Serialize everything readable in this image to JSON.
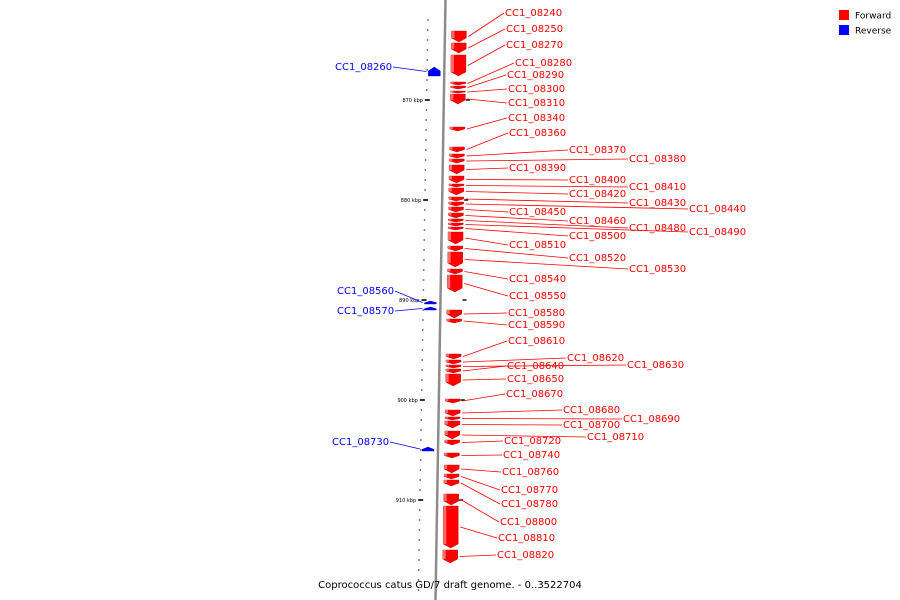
{
  "title": "Coprococcus catus GD/7 draft genome. - 0..3522704",
  "legend": [
    {
      "label": "Forward",
      "color": "#ff0000"
    },
    {
      "label": "Reverse",
      "color": "#0000ff"
    }
  ],
  "colors": {
    "forward": "#ff0000",
    "reverse": "#0000ff",
    "backbone": "#8c8c8c"
  },
  "ticks": [
    {
      "label": "870 kbp",
      "kbp": 870
    },
    {
      "label": "880 kbp",
      "kbp": 880
    },
    {
      "label": "890 kbp",
      "kbp": 890
    },
    {
      "label": "900 kbp",
      "kbp": 900
    },
    {
      "label": "910 kbp",
      "kbp": 910
    }
  ],
  "genes": [
    {
      "id": "CC1_08240",
      "strand": "+",
      "start": 863.1,
      "end": 864.2
    },
    {
      "id": "CC1_08250",
      "strand": "+",
      "start": 864.3,
      "end": 865.3
    },
    {
      "id": "CC1_08270",
      "strand": "+",
      "start": 865.5,
      "end": 867.6
    },
    {
      "id": "CC1_08280",
      "strand": "+",
      "start": 868.2,
      "end": 868.5
    },
    {
      "id": "CC1_08290",
      "strand": "+",
      "start": 868.6,
      "end": 868.9
    },
    {
      "id": "CC1_08300",
      "strand": "+",
      "start": 869.1,
      "end": 869.3
    },
    {
      "id": "CC1_08310",
      "strand": "+",
      "start": 869.4,
      "end": 870.4
    },
    {
      "id": "CC1_08340",
      "strand": "+",
      "start": 872.7,
      "end": 873.1
    },
    {
      "id": "CC1_08360",
      "strand": "+",
      "start": 874.7,
      "end": 875.2
    },
    {
      "id": "CC1_08370",
      "strand": "+",
      "start": 875.4,
      "end": 875.8
    },
    {
      "id": "CC1_08380",
      "strand": "+",
      "start": 875.9,
      "end": 876.3
    },
    {
      "id": "CC1_08390",
      "strand": "+",
      "start": 876.5,
      "end": 877.4
    },
    {
      "id": "CC1_08400",
      "strand": "+",
      "start": 877.6,
      "end": 878.3
    },
    {
      "id": "CC1_08410",
      "strand": "+",
      "start": 878.4,
      "end": 878.7
    },
    {
      "id": "CC1_08420",
      "strand": "+",
      "start": 878.8,
      "end": 879.5
    },
    {
      "id": "CC1_08430",
      "strand": "+",
      "start": 879.7,
      "end": 880.1
    },
    {
      "id": "CC1_08440",
      "strand": "+",
      "start": 880.2,
      "end": 880.6
    },
    {
      "id": "CC1_08450",
      "strand": "+",
      "start": 880.7,
      "end": 881.2
    },
    {
      "id": "CC1_08460",
      "strand": "+",
      "start": 881.3,
      "end": 881.8
    },
    {
      "id": "CC1_08480",
      "strand": "+",
      "start": 881.9,
      "end": 882.2
    },
    {
      "id": "CC1_08490",
      "strand": "+",
      "start": 882.3,
      "end": 882.6
    },
    {
      "id": "CC1_08500",
      "strand": "+",
      "start": 882.7,
      "end": 883.0
    },
    {
      "id": "CC1_08510",
      "strand": "+",
      "start": 883.2,
      "end": 884.4
    },
    {
      "id": "CC1_08520",
      "strand": "+",
      "start": 884.6,
      "end": 885.1
    },
    {
      "id": "CC1_08530",
      "strand": "+",
      "start": 885.2,
      "end": 886.7
    },
    {
      "id": "CC1_08540",
      "strand": "+",
      "start": 886.9,
      "end": 887.4
    },
    {
      "id": "CC1_08550",
      "strand": "+",
      "start": 887.5,
      "end": 889.2
    },
    {
      "id": "CC1_08580",
      "strand": "+",
      "start": 891.0,
      "end": 891.8
    },
    {
      "id": "CC1_08590",
      "strand": "+",
      "start": 891.9,
      "end": 892.3
    },
    {
      "id": "CC1_08610",
      "strand": "+",
      "start": 895.4,
      "end": 895.9
    },
    {
      "id": "CC1_08620",
      "strand": "+",
      "start": 896.0,
      "end": 896.4
    },
    {
      "id": "CC1_08630",
      "strand": "+",
      "start": 896.5,
      "end": 896.8
    },
    {
      "id": "CC1_08640",
      "strand": "+",
      "start": 896.9,
      "end": 897.3
    },
    {
      "id": "CC1_08650",
      "strand": "+",
      "start": 897.4,
      "end": 898.6
    },
    {
      "id": "CC1_08670",
      "strand": "+",
      "start": 899.9,
      "end": 900.3
    },
    {
      "id": "CC1_08680",
      "strand": "+",
      "start": 901.0,
      "end": 901.6
    },
    {
      "id": "CC1_08690",
      "strand": "+",
      "start": 901.7,
      "end": 902.0
    },
    {
      "id": "CC1_08700",
      "strand": "+",
      "start": 902.1,
      "end": 902.8
    },
    {
      "id": "CC1_08710",
      "strand": "+",
      "start": 903.1,
      "end": 903.9
    },
    {
      "id": "CC1_08720",
      "strand": "+",
      "start": 904.0,
      "end": 904.5
    },
    {
      "id": "CC1_08740",
      "strand": "+",
      "start": 905.3,
      "end": 905.8
    },
    {
      "id": "CC1_08760",
      "strand": "+",
      "start": 906.5,
      "end": 907.3
    },
    {
      "id": "CC1_08770",
      "strand": "+",
      "start": 907.4,
      "end": 907.9
    },
    {
      "id": "CC1_08780",
      "strand": "+",
      "start": 908.0,
      "end": 908.6
    },
    {
      "id": "CC1_08800",
      "strand": "+",
      "start": 909.4,
      "end": 910.5
    },
    {
      "id": "CC1_08810",
      "strand": "+",
      "start": 910.6,
      "end": 914.8
    },
    {
      "id": "CC1_08820",
      "strand": "+",
      "start": 915.0,
      "end": 916.3
    },
    {
      "id": "CC1_08260",
      "strand": "-",
      "start": 866.7,
      "end": 867.6
    },
    {
      "id": "CC1_08560",
      "strand": "-",
      "start": 890.1,
      "end": 890.4
    },
    {
      "id": "CC1_08570",
      "strand": "-",
      "start": 890.7,
      "end": 891.0
    },
    {
      "id": "CC1_08730",
      "strand": "-",
      "start": 904.7,
      "end": 905.1
    }
  ]
}
